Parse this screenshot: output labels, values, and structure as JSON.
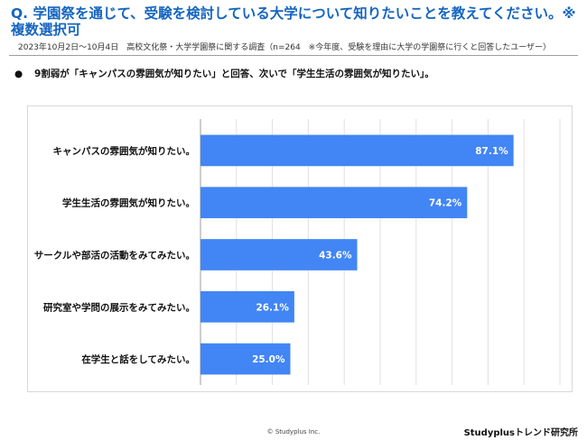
{
  "title": "Q. 学園祭を通じて、受験を検討している大学について知りたいことを教えてください。※複数選択可",
  "note": "2023年10月2日〜10月4日　高校文化祭・大学学園祭に関する調査（n=264　※今年度、受験を理由に大学の学園祭に行くと回答したユーザー）",
  "summary": {
    "bullet": "●",
    "text": "9割弱が「キャンパスの雰囲気が知りたい」と回答、次いで「学生生活の雰囲気が知りたい」。"
  },
  "chart_data": {
    "type": "bar",
    "orientation": "horizontal",
    "categories": [
      "キャンパスの雰囲気が知りたい。",
      "学生生活の雰囲気が知りたい。",
      "サークルや部活の活動をみてみたい。",
      "研究室や学問の展示をみてみたい。",
      "在学生と話をしてみたい。"
    ],
    "values": [
      87.1,
      74.2,
      43.6,
      26.1,
      25.0
    ],
    "value_labels": [
      "87.1%",
      "74.2%",
      "43.6%",
      "26.1%",
      "25.0%"
    ],
    "xlim": [
      0,
      100
    ],
    "grid": true,
    "bar_color": "#4285f4"
  },
  "footer": {
    "copyright": "© Studyplus Inc.",
    "brand": "Studyplusトレンド研究所"
  }
}
